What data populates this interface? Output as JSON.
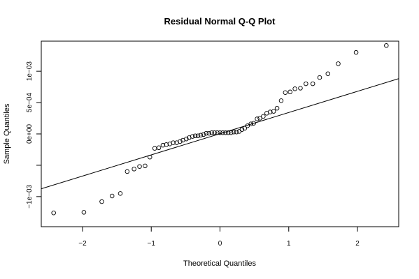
{
  "chart_data": {
    "type": "scatter",
    "title": "Residual Normal Q-Q Plot",
    "xlabel": "Theoretical Quantiles",
    "ylabel": "Sample Quantiles",
    "xlim": [
      -2.6,
      2.6
    ],
    "ylim": [
      -0.00148,
      0.00148
    ],
    "grid": false,
    "legend": "none",
    "x_ticks": [
      {
        "value": -2,
        "label": "−2"
      },
      {
        "value": -1,
        "label": "−1"
      },
      {
        "value": 0,
        "label": "0"
      },
      {
        "value": 1,
        "label": "1"
      },
      {
        "value": 2,
        "label": "2"
      }
    ],
    "y_ticks": [
      {
        "value": -0.001,
        "label": "−1e−03"
      },
      {
        "value": -0.0005,
        "label": ""
      },
      {
        "value": 0,
        "label": "0e+00"
      },
      {
        "value": 0.0005,
        "label": "5e−04"
      },
      {
        "value": 0.001,
        "label": "1e−03"
      }
    ],
    "reference_line": {
      "intercept": 3.5e-06,
      "slope": 0.000338
    },
    "points": [
      [
        -2.42,
        -0.00126
      ],
      [
        -1.98,
        -0.00125
      ],
      [
        -1.72,
        -0.00108
      ],
      [
        -1.57,
        -0.00099
      ],
      [
        -1.45,
        -0.00095
      ],
      [
        -1.35,
        -0.0006
      ],
      [
        -1.25,
        -0.00056
      ],
      [
        -1.17,
        -0.00052
      ],
      [
        -1.09,
        -0.00051
      ],
      [
        -1.02,
        -0.00037
      ],
      [
        -0.95,
        -0.00023
      ],
      [
        -0.89,
        -0.00022
      ],
      [
        -0.83,
        -0.00018
      ],
      [
        -0.78,
        -0.00017
      ],
      [
        -0.73,
        -0.00016
      ],
      [
        -0.68,
        -0.00014
      ],
      [
        -0.63,
        -0.00014
      ],
      [
        -0.58,
        -0.00012
      ],
      [
        -0.54,
        -0.0001
      ],
      [
        -0.49,
        -8e-05
      ],
      [
        -0.45,
        -6e-05
      ],
      [
        -0.4,
        -4e-05
      ],
      [
        -0.36,
        -3e-05
      ],
      [
        -0.32,
        -3e-05
      ],
      [
        -0.28,
        -2e-05
      ],
      [
        -0.24,
        -1e-05
      ],
      [
        -0.2,
        1e-05
      ],
      [
        -0.16,
        1e-05
      ],
      [
        -0.12,
        2e-05
      ],
      [
        -0.08,
        2e-05
      ],
      [
        -0.04,
        2e-05
      ],
      [
        0.0,
        2e-05
      ],
      [
        0.04,
        2e-05
      ],
      [
        0.08,
        2e-05
      ],
      [
        0.12,
        2e-05
      ],
      [
        0.16,
        2e-05
      ],
      [
        0.2,
        3e-05
      ],
      [
        0.24,
        3e-05
      ],
      [
        0.28,
        4e-05
      ],
      [
        0.32,
        7e-05
      ],
      [
        0.36,
        9e-05
      ],
      [
        0.4,
        0.00013
      ],
      [
        0.45,
        0.00016
      ],
      [
        0.49,
        0.00017
      ],
      [
        0.54,
        0.00024
      ],
      [
        0.58,
        0.00025
      ],
      [
        0.63,
        0.00028
      ],
      [
        0.68,
        0.00033
      ],
      [
        0.73,
        0.00035
      ],
      [
        0.78,
        0.00036
      ],
      [
        0.83,
        0.00041
      ],
      [
        0.89,
        0.00053
      ],
      [
        0.95,
        0.00066
      ],
      [
        1.02,
        0.00067
      ],
      [
        1.09,
        0.00072
      ],
      [
        1.17,
        0.00073
      ],
      [
        1.25,
        0.0008
      ],
      [
        1.35,
        0.0008
      ],
      [
        1.45,
        0.0009
      ],
      [
        1.57,
        0.00096
      ],
      [
        1.72,
        0.00112
      ],
      [
        1.98,
        0.0013
      ],
      [
        2.42,
        0.00141
      ]
    ]
  }
}
